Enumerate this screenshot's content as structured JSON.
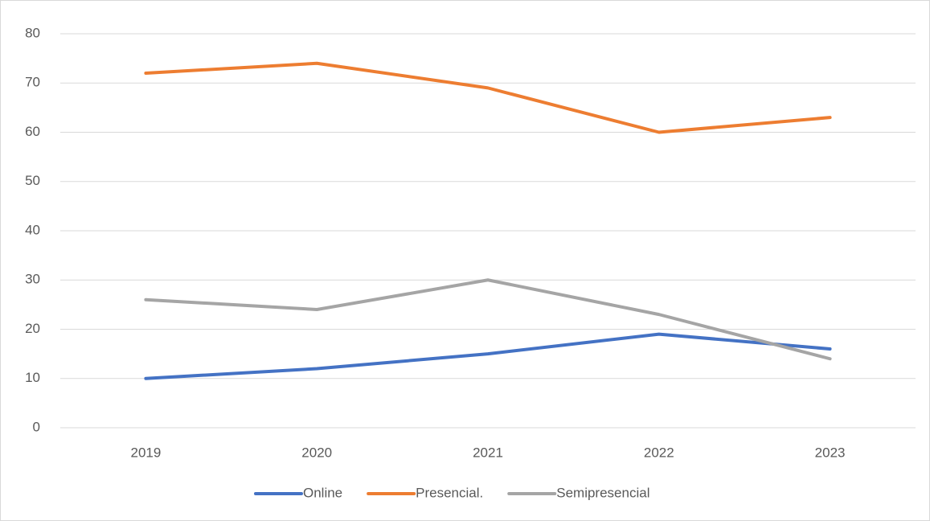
{
  "chart_data": {
    "type": "line",
    "categories": [
      "2019",
      "2020",
      "2021",
      "2022",
      "2023"
    ],
    "series": [
      {
        "name": "Online",
        "color": "#4472c4",
        "values": [
          10,
          12,
          15,
          19,
          16
        ]
      },
      {
        "name": "Presencial.",
        "color": "#ed7d31",
        "values": [
          72,
          74,
          69,
          60,
          63
        ]
      },
      {
        "name": "Semipresencial",
        "color": "#a5a5a5",
        "values": [
          26,
          24,
          30,
          23,
          14
        ]
      }
    ],
    "ylim": [
      0,
      80
    ],
    "yticks": [
      0,
      10,
      20,
      30,
      40,
      50,
      60,
      70,
      80
    ],
    "grid": true,
    "legend": "bottom"
  }
}
